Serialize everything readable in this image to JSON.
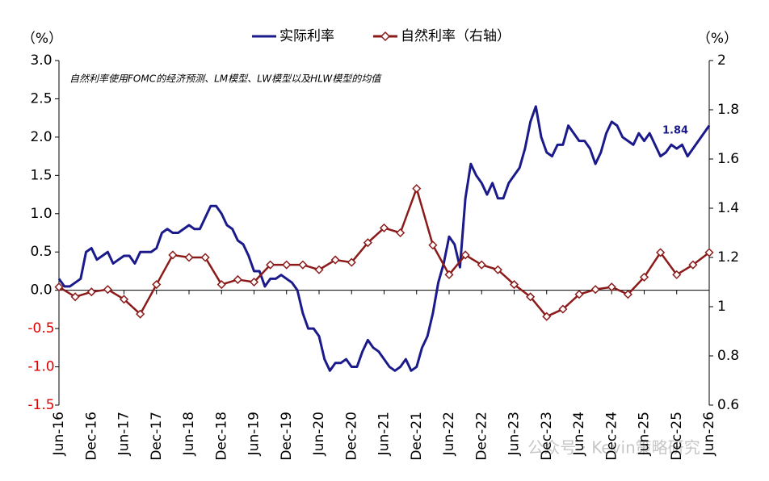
{
  "chart_data": {
    "type": "line",
    "unit_left": "（%）",
    "unit_right": "（%）",
    "annotation": "自然利率使用FOMC的经济预测、LM模型、LW模型以及HLW模型的均值",
    "value_note": "1.84",
    "watermark": "公众号 · Kevin策略研究",
    "xlim": [
      "2016-06",
      "2026-06"
    ],
    "xticks": [
      {
        "value": "2016-06",
        "label": "Jun-16"
      },
      {
        "value": "2016-12",
        "label": "Dec-16"
      },
      {
        "value": "2017-06",
        "label": "Jun-17"
      },
      {
        "value": "2017-12",
        "label": "Dec-17"
      },
      {
        "value": "2018-06",
        "label": "Jun-18"
      },
      {
        "value": "2018-12",
        "label": "Dec-18"
      },
      {
        "value": "2019-06",
        "label": "Jun-19"
      },
      {
        "value": "2019-12",
        "label": "Dec-19"
      },
      {
        "value": "2020-06",
        "label": "Jun-20"
      },
      {
        "value": "2020-12",
        "label": "Dec-20"
      },
      {
        "value": "2021-06",
        "label": "Jun-21"
      },
      {
        "value": "2021-12",
        "label": "Dec-21"
      },
      {
        "value": "2022-06",
        "label": "Jun-22"
      },
      {
        "value": "2022-12",
        "label": "Dec-22"
      },
      {
        "value": "2023-06",
        "label": "Jun-23"
      },
      {
        "value": "2023-12",
        "label": "Dec-23"
      },
      {
        "value": "2024-06",
        "label": "Jun-24"
      },
      {
        "value": "2024-12",
        "label": "Dec-24"
      },
      {
        "value": "2025-06",
        "label": "Jun-25"
      },
      {
        "value": "2025-12",
        "label": "Dec-25"
      },
      {
        "value": "2026-06",
        "label": "Jun-26"
      }
    ],
    "ylim": [
      -1.5,
      3
    ],
    "yticks": [
      {
        "value": 3,
        "label": "3.0"
      },
      2.5,
      {
        "value": 2,
        "label": "2.0"
      },
      1.5,
      {
        "value": 1,
        "label": "1.0"
      },
      0.5,
      {
        "value": 0,
        "label": "0.0"
      },
      -0.5,
      {
        "value": -1,
        "label": "-1.0"
      },
      -1.5
    ],
    "y2lim": [
      0.6,
      2
    ],
    "y2ticks": [
      2,
      1.8,
      1.6,
      1.4,
      1.2,
      1,
      0.8,
      0.6
    ],
    "series": [
      {
        "name": "实际利率",
        "color": "#1b1a8a",
        "x": [
          "2016-06",
          "2016-07",
          "2016-08",
          "2016-09",
          "2016-10",
          "2016-11",
          "2016-12",
          "2017-01",
          "2017-02",
          "2017-03",
          "2017-04",
          "2017-05",
          "2017-06",
          "2017-07",
          "2017-08",
          "2017-09",
          "2017-10",
          "2017-11",
          "2017-12",
          "2018-01",
          "2018-02",
          "2018-03",
          "2018-04",
          "2018-05",
          "2018-06",
          "2018-07",
          "2018-08",
          "2018-09",
          "2018-10",
          "2018-11",
          "2018-12",
          "2019-01",
          "2019-02",
          "2019-03",
          "2019-04",
          "2019-05",
          "2019-06",
          "2019-07",
          "2019-08",
          "2019-09",
          "2019-10",
          "2019-11",
          "2019-12",
          "2020-01",
          "2020-02",
          "2020-03",
          "2020-04",
          "2020-05",
          "2020-06",
          "2020-07",
          "2020-08",
          "2020-09",
          "2020-10",
          "2020-11",
          "2020-12",
          "2021-01",
          "2021-02",
          "2021-03",
          "2021-04",
          "2021-05",
          "2021-06",
          "2021-07",
          "2021-08",
          "2021-09",
          "2021-10",
          "2021-11",
          "2021-12",
          "2022-01",
          "2022-02",
          "2022-03",
          "2022-04",
          "2022-05",
          "2022-06",
          "2022-07",
          "2022-08",
          "2022-09",
          "2022-10",
          "2022-11",
          "2022-12",
          "2023-01",
          "2023-02",
          "2023-03",
          "2023-04",
          "2023-05",
          "2023-06",
          "2023-07",
          "2023-08",
          "2023-09",
          "2023-10",
          "2023-11",
          "2023-12",
          "2024-01",
          "2024-02",
          "2024-03",
          "2024-04",
          "2024-05",
          "2024-06",
          "2024-07",
          "2024-08",
          "2024-09",
          "2024-10",
          "2024-11",
          "2024-12",
          "2025-01",
          "2025-02",
          "2025-03",
          "2025-04",
          "2025-05",
          "2025-06",
          "2025-07",
          "2025-08",
          "2025-09",
          "2025-10",
          "2025-11",
          "2025-12",
          "2026-01",
          "2026-02",
          "2026-03",
          "2026-04",
          "2026-05",
          "2026-06"
        ],
        "values": [
          0.15,
          0.05,
          0.05,
          0.1,
          0.15,
          0.5,
          0.55,
          0.4,
          0.45,
          0.5,
          0.35,
          0.4,
          0.45,
          0.45,
          0.35,
          0.5,
          0.5,
          0.5,
          0.55,
          0.75,
          0.8,
          0.75,
          0.75,
          0.8,
          0.85,
          0.8,
          0.8,
          0.95,
          1.1,
          1.1,
          1.0,
          0.85,
          0.8,
          0.65,
          0.6,
          0.45,
          0.25,
          0.25,
          0.05,
          0.15,
          0.15,
          0.2,
          0.15,
          0.1,
          0.0,
          -0.3,
          -0.5,
          -0.5,
          -0.6,
          -0.9,
          -1.05,
          -0.95,
          -0.95,
          -0.9,
          -1.0,
          -1.0,
          -0.8,
          -0.65,
          -0.75,
          -0.8,
          -0.9,
          -1.0,
          -1.05,
          -1.0,
          -0.9,
          -1.05,
          -1.0,
          -0.75,
          -0.6,
          -0.3,
          0.1,
          0.35,
          0.7,
          0.6,
          0.3,
          1.2,
          1.65,
          1.5,
          1.4,
          1.25,
          1.4,
          1.2,
          1.2,
          1.4,
          1.5,
          1.6,
          1.85,
          2.2,
          2.4,
          2.0,
          1.8,
          1.75,
          1.9,
          1.9,
          2.15,
          2.05,
          1.95,
          1.95,
          1.85,
          1.65,
          1.8,
          2.05,
          2.2,
          2.15,
          2.0,
          1.95,
          1.9,
          2.05,
          1.95,
          2.05,
          1.9,
          1.75,
          1.8,
          1.9,
          1.85,
          1.9,
          1.75,
          1.85,
          1.95,
          2.05,
          2.15
        ]
      },
      {
        "name": "自然利率（右轴）",
        "color": "#8b1a1a",
        "axis": "y2",
        "marker": "diamond",
        "x": [
          "2016-06",
          "2016-09",
          "2016-12",
          "2017-03",
          "2017-06",
          "2017-09",
          "2017-12",
          "2018-03",
          "2018-06",
          "2018-09",
          "2018-12",
          "2019-03",
          "2019-06",
          "2019-09",
          "2019-12",
          "2020-03",
          "2020-06",
          "2020-09",
          "2020-12",
          "2021-03",
          "2021-06",
          "2021-09",
          "2021-12",
          "2022-03",
          "2022-06",
          "2022-09",
          "2022-12",
          "2023-03",
          "2023-06",
          "2023-09",
          "2023-12",
          "2024-03",
          "2024-06",
          "2024-09",
          "2024-12",
          "2025-03",
          "2025-06",
          "2025-09",
          "2025-12",
          "2026-03",
          "2026-06"
        ],
        "values": [
          1.08,
          1.04,
          1.06,
          1.07,
          1.03,
          0.97,
          1.09,
          1.21,
          1.2,
          1.2,
          1.09,
          1.11,
          1.1,
          1.17,
          1.17,
          1.17,
          1.15,
          1.19,
          1.18,
          1.26,
          1.32,
          1.3,
          1.48,
          1.25,
          1.13,
          1.21,
          1.17,
          1.15,
          1.09,
          1.04,
          0.96,
          0.99,
          1.05,
          1.07,
          1.08,
          1.05,
          1.12,
          1.22,
          1.13,
          1.17,
          1.22
        ]
      }
    ]
  }
}
